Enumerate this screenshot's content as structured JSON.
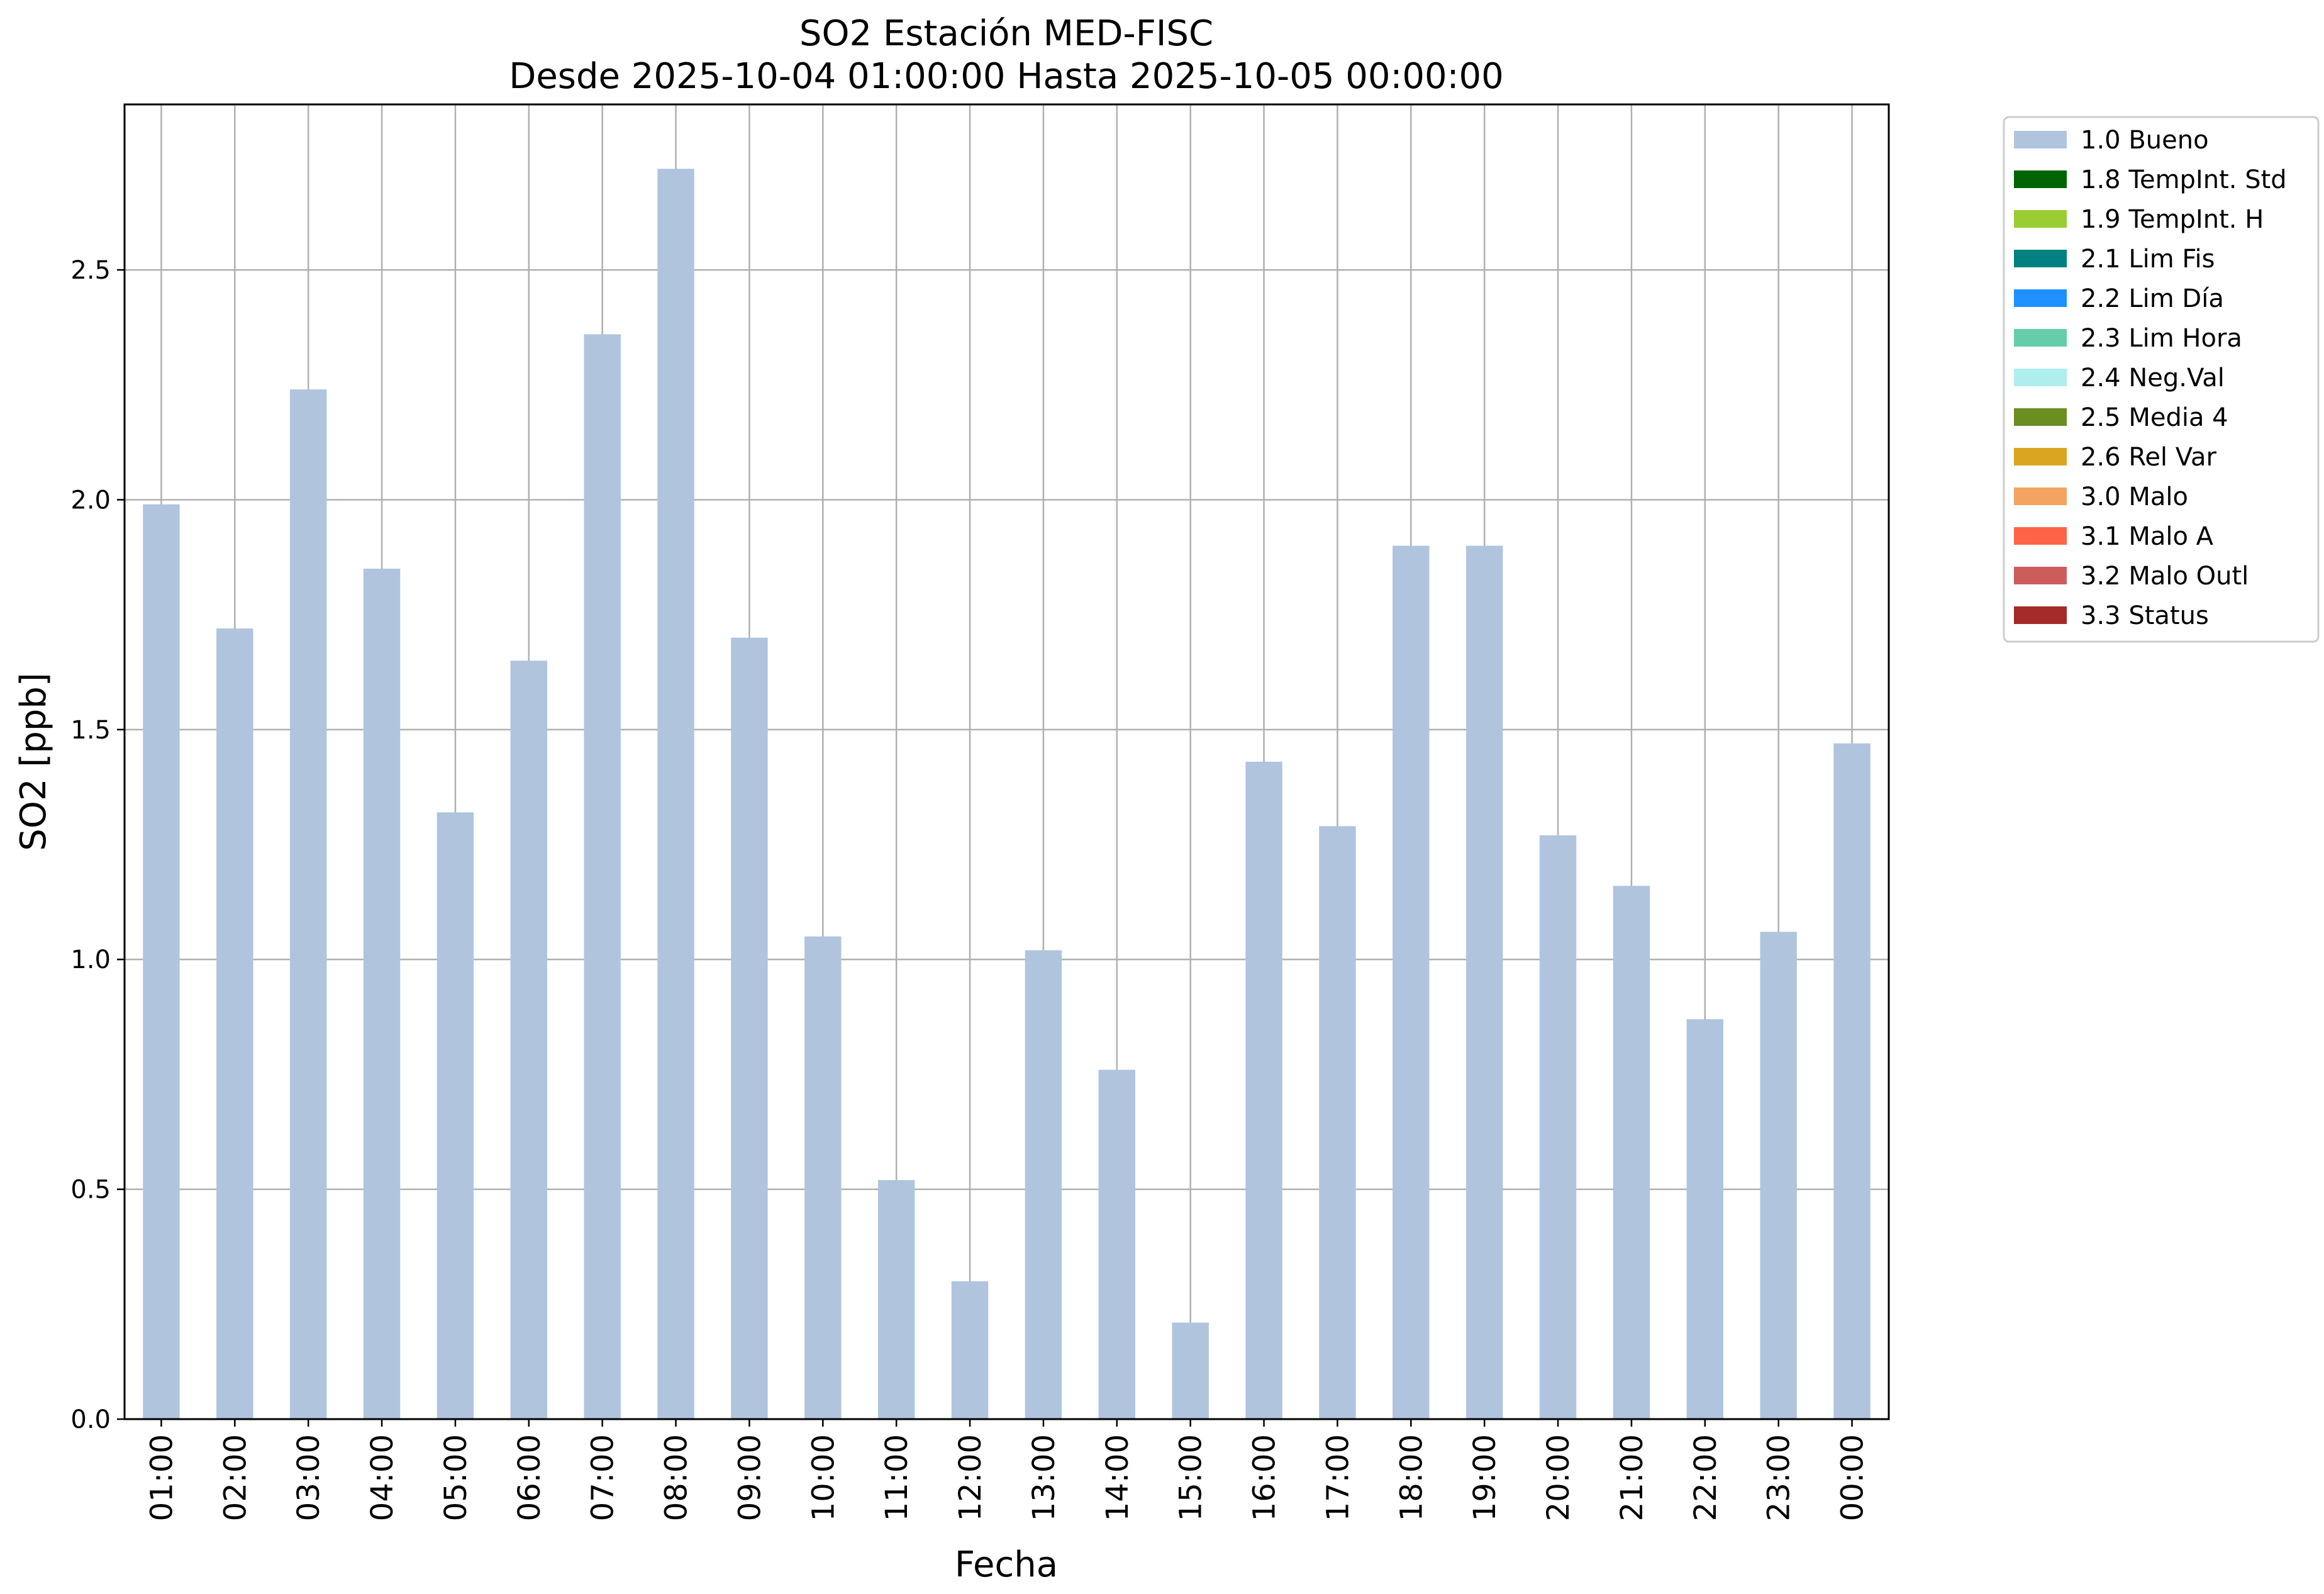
{
  "chart_data": {
    "type": "bar",
    "title_line1": "SO2 Estación MED-FISC",
    "title_line2": "Desde 2025-10-04 01:00:00 Hasta 2025-10-05 00:00:00",
    "xlabel": "Fecha",
    "ylabel": "SO2 [ppb]",
    "ylim": [
      0,
      2.86
    ],
    "yticks": [
      "0.0",
      "0.5",
      "1.0",
      "1.5",
      "2.0",
      "2.5"
    ],
    "grid": true,
    "legend_position": "outside-right-top",
    "categories": [
      "01:00",
      "02:00",
      "03:00",
      "04:00",
      "05:00",
      "06:00",
      "07:00",
      "08:00",
      "09:00",
      "10:00",
      "11:00",
      "12:00",
      "13:00",
      "14:00",
      "15:00",
      "16:00",
      "17:00",
      "18:00",
      "19:00",
      "20:00",
      "21:00",
      "22:00",
      "23:00",
      "00:00"
    ],
    "series": [
      {
        "name": "1.0 Bueno",
        "color": "#b0c4de",
        "values": [
          1.99,
          1.72,
          2.24,
          1.85,
          1.32,
          1.65,
          2.36,
          2.72,
          1.7,
          1.05,
          0.52,
          0.3,
          1.02,
          0.76,
          0.21,
          1.43,
          1.29,
          1.9,
          1.9,
          1.27,
          1.16,
          0.87,
          1.06,
          1.47
        ]
      }
    ],
    "legend": [
      {
        "label": "1.0 Bueno",
        "color": "#b0c4de"
      },
      {
        "label": "1.8 TempInt. Std",
        "color": "#006400"
      },
      {
        "label": "1.9 TempInt. H",
        "color": "#9acd32"
      },
      {
        "label": "2.1 Lim Fis",
        "color": "#008080"
      },
      {
        "label": "2.2 Lim Día",
        "color": "#1e90ff"
      },
      {
        "label": "2.3 Lim Hora",
        "color": "#66cdaa"
      },
      {
        "label": "2.4 Neg.Val",
        "color": "#afeeee"
      },
      {
        "label": "2.5 Media 4",
        "color": "#6b8e23"
      },
      {
        "label": "2.6 Rel Var",
        "color": "#daa520"
      },
      {
        "label": "3.0 Malo",
        "color": "#f4a460"
      },
      {
        "label": "3.1 Malo A",
        "color": "#ff6347"
      },
      {
        "label": "3.2 Malo Outl",
        "color": "#cd5c5c"
      },
      {
        "label": "3.3 Status",
        "color": "#a52a2a"
      }
    ]
  }
}
